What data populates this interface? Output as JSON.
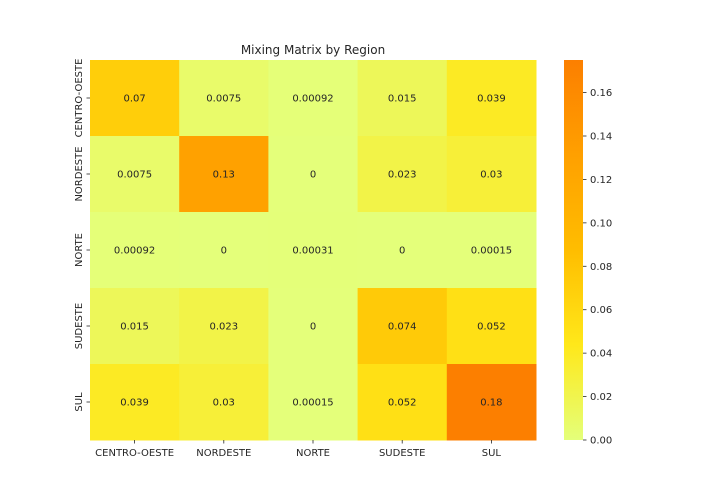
{
  "chart_data": {
    "type": "heatmap",
    "title": "Mixing Matrix by Region",
    "xlabel": "",
    "ylabel": "",
    "x_categories": [
      "CENTRO-OESTE",
      "NORDESTE",
      "NORTE",
      "SUDESTE",
      "SUL"
    ],
    "y_categories": [
      "CENTRO-OESTE",
      "NORDESTE",
      "NORTE",
      "SUDESTE",
      "SUL"
    ],
    "values": [
      [
        0.07,
        0.0075,
        0.00092,
        0.015,
        0.039
      ],
      [
        0.0075,
        0.13,
        0,
        0.023,
        0.03
      ],
      [
        0.00092,
        0,
        0.00031,
        0,
        0.00015
      ],
      [
        0.015,
        0.023,
        0,
        0.074,
        0.052
      ],
      [
        0.039,
        0.03,
        0.00015,
        0.052,
        0.18
      ]
    ],
    "cell_labels": [
      [
        "0.07",
        "0.0075",
        "0.00092",
        "0.015",
        "0.039"
      ],
      [
        "0.0075",
        "0.13",
        "0",
        "0.023",
        "0.03"
      ],
      [
        "0.00092",
        "0",
        "0.00031",
        "0",
        "0.00015"
      ],
      [
        "0.015",
        "0.023",
        "0",
        "0.074",
        "0.052"
      ],
      [
        "0.039",
        "0.03",
        "0.00015",
        "0.052",
        "0.18"
      ]
    ],
    "colorbar": {
      "vmin": 0,
      "vmax": 0.175,
      "ticks": [
        0.0,
        0.02,
        0.04,
        0.06,
        0.08,
        0.1,
        0.12,
        0.14,
        0.16
      ],
      "tick_labels": [
        "0.00",
        "0.02",
        "0.04",
        "0.06",
        "0.08",
        "0.10",
        "0.12",
        "0.14",
        "0.16"
      ],
      "colormap": "Wistia",
      "colors": [
        "#e4ff7a",
        "#ffe81a",
        "#ffbd00",
        "#ffa000",
        "#fc7f00"
      ]
    },
    "grid": false,
    "legend": "colorbar-right"
  }
}
